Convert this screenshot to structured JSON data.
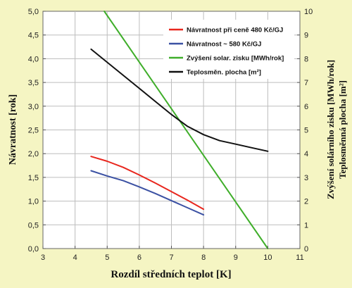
{
  "chart_data": {
    "type": "line",
    "xlabel": "Rozdíl středních teplot [K]",
    "ylabel_left": "Návratnost [rok]",
    "ylabel_right_1": "Zvýšení solárního zisku [MWh/rok]",
    "ylabel_right_2": "Teplosměnná plocha [m²]",
    "xlim": [
      3,
      11
    ],
    "ylim_left": [
      0,
      5
    ],
    "ylim_right": [
      0,
      10
    ],
    "x_ticks": [
      "3",
      "4",
      "5",
      "6",
      "7",
      "8",
      "9",
      "10",
      "11"
    ],
    "y_left_ticks": [
      "0,0",
      "0,5",
      "1,0",
      "1,5",
      "2,0",
      "2,5",
      "3,0",
      "3,5",
      "4,0",
      "4,5",
      "5,0"
    ],
    "y_right_ticks": [
      "0",
      "1",
      "2",
      "3",
      "4",
      "5",
      "6",
      "7",
      "8",
      "9",
      "10"
    ],
    "grid": true,
    "legend_position": "top-right",
    "series": [
      {
        "name": "Návratnost při ceně 480 Kč/GJ",
        "axis": "left",
        "color": "#e8261d",
        "points": [
          [
            4.5,
            1.94
          ],
          [
            5.0,
            1.84
          ],
          [
            5.5,
            1.71
          ],
          [
            6.0,
            1.55
          ],
          [
            6.5,
            1.38
          ],
          [
            7.0,
            1.2
          ],
          [
            7.5,
            1.02
          ],
          [
            8.0,
            0.83
          ]
        ]
      },
      {
        "name": "Návratnost ~ 580 Kč/GJ",
        "axis": "left",
        "color": "#3b51a3",
        "points": [
          [
            4.5,
            1.64
          ],
          [
            5.0,
            1.53
          ],
          [
            5.5,
            1.43
          ],
          [
            6.0,
            1.3
          ],
          [
            6.5,
            1.16
          ],
          [
            7.0,
            1.01
          ],
          [
            7.5,
            0.86
          ],
          [
            8.0,
            0.71
          ]
        ]
      },
      {
        "name": "Zvýšení solar. zisku [MWh/rok]",
        "axis": "right",
        "color": "#3fae2a",
        "points": [
          [
            4.91,
            10.0
          ],
          [
            10.0,
            0.0
          ]
        ]
      },
      {
        "name": "Teplosměn. plocha [m²]",
        "axis": "right",
        "color": "#111111",
        "points": [
          [
            4.5,
            8.4
          ],
          [
            5.0,
            7.85
          ],
          [
            5.5,
            7.3
          ],
          [
            6.0,
            6.75
          ],
          [
            6.5,
            6.2
          ],
          [
            7.0,
            5.65
          ],
          [
            7.5,
            5.15
          ],
          [
            8.0,
            4.8
          ],
          [
            8.5,
            4.55
          ],
          [
            9.0,
            4.4
          ],
          [
            9.5,
            4.25
          ],
          [
            10.0,
            4.1
          ]
        ]
      }
    ]
  },
  "colors": {
    "background": "#f5f5c3",
    "plot_background": "#ffffff",
    "grid": "#bdbdbd"
  }
}
